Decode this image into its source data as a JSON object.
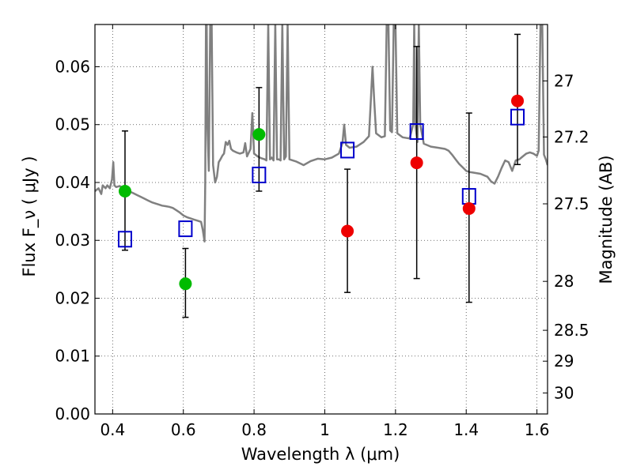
{
  "chart_data": {
    "type": "scatter",
    "xlabel": "Wavelength  λ (μm)",
    "ylabel": "Flux  F_ν  ( μJy )",
    "y2label": "Magnitude (AB)",
    "xlim": [
      0.35,
      1.63
    ],
    "ylim": [
      0.0,
      0.0673
    ],
    "grid": true,
    "xticks": [
      {
        "value": 0.4,
        "label": "0.4"
      },
      {
        "value": 0.6,
        "label": "0.6"
      },
      {
        "value": 0.8,
        "label": "0.8"
      },
      {
        "value": 1.0,
        "label": "1"
      },
      {
        "value": 1.2,
        "label": "1.2"
      },
      {
        "value": 1.4,
        "label": "1.4"
      },
      {
        "value": 1.6,
        "label": "1.6"
      }
    ],
    "yticks": [
      {
        "value": 0.0,
        "label": "0.00"
      },
      {
        "value": 0.01,
        "label": "0.01"
      },
      {
        "value": 0.02,
        "label": "0.02"
      },
      {
        "value": 0.03,
        "label": "0.03"
      },
      {
        "value": 0.04,
        "label": "0.04"
      },
      {
        "value": 0.05,
        "label": "0.05"
      },
      {
        "value": 0.06,
        "label": "0.06"
      }
    ],
    "y2ticks": [
      {
        "mag": 27.0,
        "label": "27"
      },
      {
        "mag": 27.2,
        "label": "27.2"
      },
      {
        "mag": 27.5,
        "label": "27.5"
      },
      {
        "mag": 28.0,
        "label": "28"
      },
      {
        "mag": 28.5,
        "label": "28.5"
      },
      {
        "mag": 29.0,
        "label": "29"
      },
      {
        "mag": 30.0,
        "label": "30"
      }
    ],
    "colors": {
      "model": "#808080",
      "model_points": "#0000cc",
      "green": "#00bb00",
      "red": "#ee0000",
      "errorbar": "#000000",
      "grid": "#444444"
    },
    "model_spectrum": [
      [
        0.35,
        0.0385
      ],
      [
        0.36,
        0.039
      ],
      [
        0.368,
        0.038
      ],
      [
        0.372,
        0.0395
      ],
      [
        0.38,
        0.039
      ],
      [
        0.385,
        0.0395
      ],
      [
        0.392,
        0.039
      ],
      [
        0.398,
        0.0405
      ],
      [
        0.402,
        0.0435
      ],
      [
        0.405,
        0.0395
      ],
      [
        0.41,
        0.0392
      ],
      [
        0.42,
        0.0394
      ],
      [
        0.43,
        0.039
      ],
      [
        0.44,
        0.0387
      ],
      [
        0.45,
        0.0384
      ],
      [
        0.46,
        0.0381
      ],
      [
        0.47,
        0.0378
      ],
      [
        0.48,
        0.0375
      ],
      [
        0.49,
        0.0372
      ],
      [
        0.5,
        0.0369
      ],
      [
        0.51,
        0.0366
      ],
      [
        0.52,
        0.0364
      ],
      [
        0.53,
        0.0362
      ],
      [
        0.54,
        0.036
      ],
      [
        0.55,
        0.0359
      ],
      [
        0.56,
        0.0358
      ],
      [
        0.57,
        0.0356
      ],
      [
        0.58,
        0.0352
      ],
      [
        0.59,
        0.0348
      ],
      [
        0.6,
        0.0343
      ],
      [
        0.61,
        0.034
      ],
      [
        0.62,
        0.0338
      ],
      [
        0.63,
        0.0336
      ],
      [
        0.64,
        0.0334
      ],
      [
        0.65,
        0.0332
      ],
      [
        0.655,
        0.0318
      ],
      [
        0.66,
        0.0298
      ],
      [
        0.662,
        0.04
      ],
      [
        0.664,
        0.0675
      ],
      [
        0.666,
        0.0675
      ],
      [
        0.668,
        0.05
      ],
      [
        0.672,
        0.042
      ],
      [
        0.676,
        0.0675
      ],
      [
        0.68,
        0.0675
      ],
      [
        0.684,
        0.043
      ],
      [
        0.69,
        0.04
      ],
      [
        0.695,
        0.041
      ],
      [
        0.7,
        0.0435
      ],
      [
        0.705,
        0.044
      ],
      [
        0.71,
        0.0446
      ],
      [
        0.715,
        0.045
      ],
      [
        0.72,
        0.047
      ],
      [
        0.725,
        0.0465
      ],
      [
        0.73,
        0.0472
      ],
      [
        0.735,
        0.0458
      ],
      [
        0.74,
        0.0455
      ],
      [
        0.75,
        0.0452
      ],
      [
        0.76,
        0.045
      ],
      [
        0.77,
        0.0452
      ],
      [
        0.775,
        0.0468
      ],
      [
        0.78,
        0.0445
      ],
      [
        0.79,
        0.0458
      ],
      [
        0.795,
        0.052
      ],
      [
        0.8,
        0.045
      ],
      [
        0.81,
        0.0445
      ],
      [
        0.82,
        0.0442
      ],
      [
        0.83,
        0.044
      ],
      [
        0.835,
        0.0438
      ],
      [
        0.84,
        0.0675
      ],
      [
        0.845,
        0.044
      ],
      [
        0.85,
        0.0443
      ],
      [
        0.855,
        0.0438
      ],
      [
        0.86,
        0.0675
      ],
      [
        0.865,
        0.044
      ],
      [
        0.87,
        0.044
      ],
      [
        0.875,
        0.0438
      ],
      [
        0.88,
        0.0675
      ],
      [
        0.885,
        0.044
      ],
      [
        0.89,
        0.0445
      ],
      [
        0.895,
        0.0675
      ],
      [
        0.9,
        0.044
      ],
      [
        0.92,
        0.0436
      ],
      [
        0.94,
        0.043
      ],
      [
        0.96,
        0.0437
      ],
      [
        0.98,
        0.0441
      ],
      [
        1.0,
        0.044
      ],
      [
        1.02,
        0.0443
      ],
      [
        1.04,
        0.045
      ],
      [
        1.05,
        0.0468
      ],
      [
        1.055,
        0.05
      ],
      [
        1.06,
        0.0465
      ],
      [
        1.07,
        0.046
      ],
      [
        1.09,
        0.0462
      ],
      [
        1.11,
        0.047
      ],
      [
        1.125,
        0.048
      ],
      [
        1.13,
        0.054
      ],
      [
        1.135,
        0.06
      ],
      [
        1.14,
        0.054
      ],
      [
        1.145,
        0.0485
      ],
      [
        1.16,
        0.0478
      ],
      [
        1.17,
        0.048
      ],
      [
        1.175,
        0.0675
      ],
      [
        1.18,
        0.0675
      ],
      [
        1.185,
        0.049
      ],
      [
        1.19,
        0.0487
      ],
      [
        1.195,
        0.0675
      ],
      [
        1.2,
        0.0675
      ],
      [
        1.205,
        0.0485
      ],
      [
        1.22,
        0.0478
      ],
      [
        1.24,
        0.0476
      ],
      [
        1.25,
        0.05
      ],
      [
        1.253,
        0.0675
      ],
      [
        1.256,
        0.05
      ],
      [
        1.262,
        0.047
      ],
      [
        1.266,
        0.0675
      ],
      [
        1.27,
        0.05
      ],
      [
        1.28,
        0.0467
      ],
      [
        1.3,
        0.0462
      ],
      [
        1.32,
        0.046
      ],
      [
        1.34,
        0.0458
      ],
      [
        1.35,
        0.0455
      ],
      [
        1.36,
        0.0448
      ],
      [
        1.37,
        0.044
      ],
      [
        1.38,
        0.0432
      ],
      [
        1.39,
        0.0426
      ],
      [
        1.4,
        0.042
      ],
      [
        1.41,
        0.0418
      ],
      [
        1.42,
        0.0417
      ],
      [
        1.44,
        0.0415
      ],
      [
        1.46,
        0.041
      ],
      [
        1.47,
        0.0402
      ],
      [
        1.48,
        0.0398
      ],
      [
        1.49,
        0.041
      ],
      [
        1.5,
        0.0425
      ],
      [
        1.51,
        0.0438
      ],
      [
        1.52,
        0.0435
      ],
      [
        1.53,
        0.042
      ],
      [
        1.54,
        0.0438
      ],
      [
        1.55,
        0.044
      ],
      [
        1.56,
        0.0445
      ],
      [
        1.57,
        0.045
      ],
      [
        1.58,
        0.0452
      ],
      [
        1.59,
        0.045
      ],
      [
        1.6,
        0.0446
      ],
      [
        1.605,
        0.0455
      ],
      [
        1.61,
        0.0675
      ],
      [
        1.615,
        0.0675
      ],
      [
        1.62,
        0.0448
      ],
      [
        1.625,
        0.044
      ],
      [
        1.63,
        0.043
      ]
    ],
    "model_points": [
      {
        "x": 0.435,
        "y": 0.0302
      },
      {
        "x": 0.606,
        "y": 0.032
      },
      {
        "x": 0.814,
        "y": 0.0413
      },
      {
        "x": 1.064,
        "y": 0.0456
      },
      {
        "x": 1.26,
        "y": 0.0488
      },
      {
        "x": 1.408,
        "y": 0.0376
      },
      {
        "x": 1.545,
        "y": 0.0513
      }
    ],
    "observed_green": [
      {
        "x": 0.435,
        "y": 0.0385,
        "lo": 0.0283,
        "hi": 0.0489
      },
      {
        "x": 0.606,
        "y": 0.0225,
        "lo": 0.0167,
        "hi": 0.0286
      },
      {
        "x": 0.814,
        "y": 0.0483,
        "lo": 0.0385,
        "hi": 0.0564
      }
    ],
    "observed_red": [
      {
        "x": 1.064,
        "y": 0.0316,
        "lo": 0.021,
        "hi": 0.0423
      },
      {
        "x": 1.26,
        "y": 0.0434,
        "lo": 0.0234,
        "hi": 0.0635
      },
      {
        "x": 1.408,
        "y": 0.0355,
        "lo": 0.0193,
        "hi": 0.052
      },
      {
        "x": 1.545,
        "y": 0.0541,
        "lo": 0.0431,
        "hi": 0.0656
      }
    ]
  }
}
